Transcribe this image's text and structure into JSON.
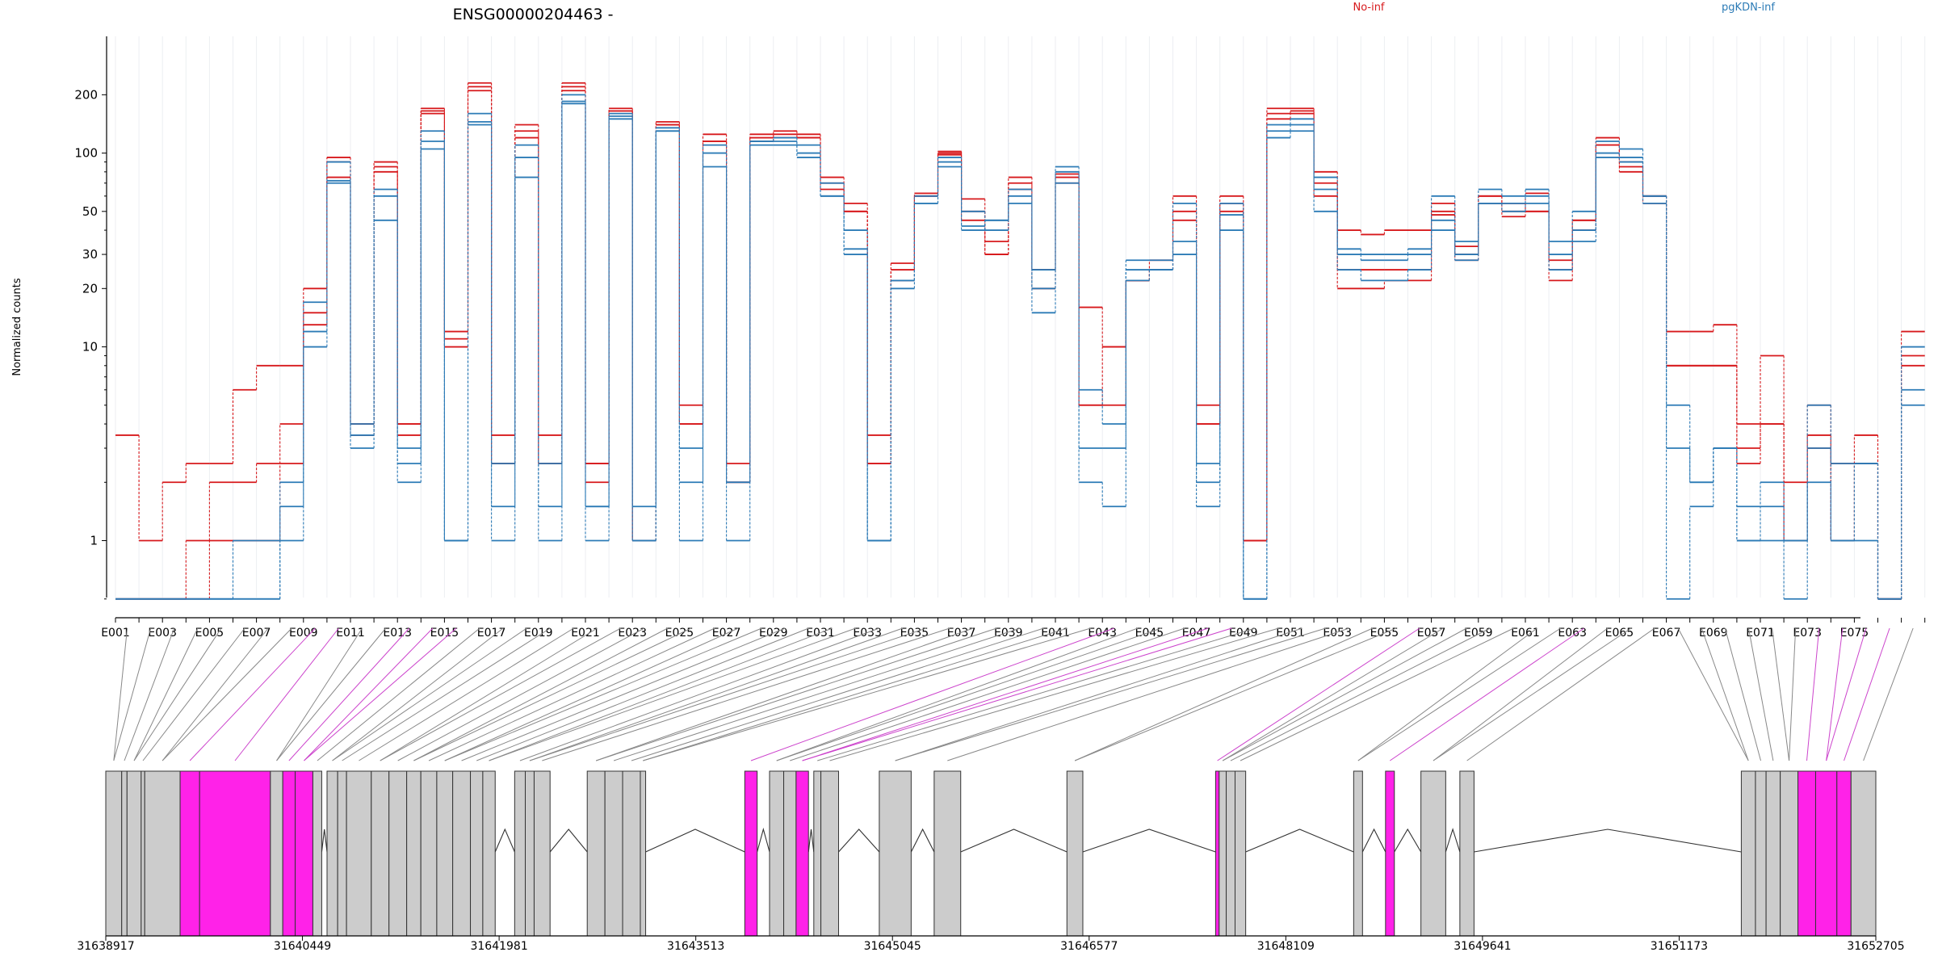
{
  "chart_data": {
    "type": "line",
    "title": "ENSG00000204463 -",
    "ylabel": "Normalized counts",
    "y_scale": "log",
    "ylim": [
      0.4,
      260
    ],
    "yticks": [
      1,
      10,
      20,
      30,
      50,
      100,
      200
    ],
    "ytick_labels": [
      "1",
      "10",
      "20",
      "30",
      "50",
      "100",
      "200"
    ],
    "x_tick_labels": [
      "E001",
      "E003",
      "E005",
      "E007",
      "E009",
      "E011",
      "E013",
      "E015",
      "E017",
      "E019",
      "E021",
      "E023",
      "E025",
      "E027",
      "E029",
      "E031",
      "E033",
      "E035",
      "E037",
      "E039",
      "E041",
      "E043",
      "E045",
      "E047",
      "E049",
      "E051",
      "E053",
      "E055",
      "E057",
      "E059",
      "E061",
      "E063",
      "E065",
      "E067",
      "E069",
      "E071",
      "E073",
      "E075"
    ],
    "legend": [
      "No-inf",
      "pgKDN-inf"
    ],
    "legend_placement": "top-right",
    "colors": {
      "No-inf": "#d7191c",
      "pgKDN-inf": "#2c7bb6",
      "exon": "#cccccc",
      "highlight": "#ff22e8"
    },
    "genome_axis": {
      "ticks": [
        31638917,
        31640449,
        31641981,
        31643513,
        31645045,
        31646577,
        31648109,
        31649641,
        31651173,
        31652705
      ],
      "tick_labels": [
        "31638917",
        "31640449",
        "31641981",
        "31643513",
        "31645045",
        "31646577",
        "31648109",
        "31649641",
        "31651173",
        "31652705"
      ]
    },
    "exons": [
      [
        0,
        0.009
      ],
      [
        0.009,
        0.012
      ],
      [
        0.012,
        0.02
      ],
      [
        0.02,
        0.022
      ],
      [
        0.022,
        0.042
      ],
      [
        0.042,
        0.053
      ],
      [
        0.053,
        0.093
      ],
      [
        0.093,
        0.1
      ],
      [
        0.1,
        0.107
      ],
      [
        0.107,
        0.117
      ],
      [
        0.117,
        0.122
      ],
      [
        0.125,
        0.131
      ],
      [
        0.131,
        0.136
      ],
      [
        0.136,
        0.15
      ],
      [
        0.15,
        0.16
      ],
      [
        0.16,
        0.17
      ],
      [
        0.17,
        0.178
      ],
      [
        0.178,
        0.187
      ],
      [
        0.187,
        0.196
      ],
      [
        0.196,
        0.206
      ],
      [
        0.206,
        0.213
      ],
      [
        0.213,
        0.22
      ],
      [
        0.231,
        0.237
      ],
      [
        0.237,
        0.242
      ],
      [
        0.242,
        0.251
      ],
      [
        0.272,
        0.282
      ],
      [
        0.282,
        0.292
      ],
      [
        0.292,
        0.302
      ],
      [
        0.302,
        0.305
      ],
      [
        0.361,
        0.368
      ],
      [
        0.375,
        0.383
      ],
      [
        0.383,
        0.39
      ],
      [
        0.39,
        0.397
      ],
      [
        0.4,
        0.404
      ],
      [
        0.404,
        0.414
      ],
      [
        0.437,
        0.455
      ],
      [
        0.468,
        0.483
      ],
      [
        0.543,
        0.552
      ],
      [
        0.627,
        0.629
      ],
      [
        0.629,
        0.633
      ],
      [
        0.633,
        0.638
      ],
      [
        0.638,
        0.644
      ],
      [
        0.705,
        0.71
      ],
      [
        0.723,
        0.728
      ],
      [
        0.743,
        0.757
      ],
      [
        0.765,
        0.773
      ],
      [
        0.924,
        0.932
      ],
      [
        0.932,
        0.938
      ],
      [
        0.938,
        0.946
      ],
      [
        0.946,
        0.956
      ],
      [
        0.956,
        0.966
      ],
      [
        0.966,
        0.978
      ],
      [
        0.978,
        0.986
      ],
      [
        0.986,
        1.0
      ]
    ],
    "highlighted_exons": [
      5,
      6,
      8,
      9,
      29,
      32,
      38,
      43,
      50,
      51,
      52
    ],
    "series": [
      {
        "name": "No-inf",
        "values": [
          3.5,
          1,
          2,
          2.5,
          2.5,
          6,
          8,
          8,
          15,
          90,
          4,
          90,
          4,
          170,
          12,
          230,
          3.5,
          140,
          3.5,
          230,
          2.5,
          170,
          1,
          145,
          5,
          125,
          2.5,
          120,
          120,
          120,
          75,
          55,
          3.5,
          27,
          60,
          102,
          58,
          35,
          75,
          25,
          70,
          16,
          10,
          22,
          28,
          60,
          5,
          55,
          1,
          170,
          170,
          60,
          40,
          38,
          40,
          40,
          50,
          30,
          60,
          55,
          50,
          25,
          45,
          120,
          80,
          60,
          12,
          12,
          13,
          3,
          9,
          2,
          3.5,
          1,
          3.5,
          0.5,
          12
        ]
      },
      {
        "name": "No-inf",
        "values": [
          0.5,
          0.5,
          0.5,
          1,
          2,
          2,
          2.5,
          2.5,
          13,
          75,
          3.5,
          80,
          3.5,
          160,
          10,
          210,
          2.5,
          120,
          2.5,
          210,
          2,
          165,
          1,
          140,
          4,
          115,
          2,
          125,
          130,
          120,
          70,
          50,
          2.5,
          25,
          62,
          98,
          50,
          30,
          70,
          20,
          78,
          5,
          10,
          22,
          25,
          50,
          4,
          50,
          1,
          160,
          165,
          70,
          25,
          25,
          25,
          25,
          48,
          28,
          55,
          50,
          50,
          22,
          40,
          110,
          85,
          55,
          8,
          8,
          8,
          2.5,
          4,
          1,
          3,
          1,
          2.5,
          0.5,
          9
        ]
      },
      {
        "name": "No-inf",
        "values": [
          0.5,
          0.5,
          0.5,
          0.5,
          1,
          1,
          1,
          4,
          20,
          95,
          4,
          85,
          4,
          165,
          11,
          220,
          2.5,
          130,
          2.5,
          220,
          2.5,
          165,
          1,
          140,
          4,
          115,
          2,
          115,
          125,
          125,
          65,
          50,
          2.5,
          22,
          60,
          100,
          45,
          30,
          65,
          25,
          75,
          5,
          5,
          22,
          25,
          45,
          4,
          60,
          1,
          150,
          160,
          80,
          20,
          20,
          22,
          22,
          55,
          33,
          60,
          47,
          62,
          28,
          45,
          110,
          90,
          60,
          8,
          8,
          8,
          4,
          4,
          1,
          5,
          2.5,
          2.5,
          0.5,
          8
        ]
      },
      {
        "name": "pgKDN-inf",
        "values": [
          0.5,
          0.5,
          0.5,
          0.5,
          0.5,
          0.5,
          0.5,
          1.5,
          12,
          70,
          4,
          45,
          2,
          105,
          1,
          140,
          1,
          75,
          1,
          180,
          1,
          155,
          1.5,
          130,
          1,
          85,
          1,
          110,
          110,
          100,
          60,
          30,
          1,
          20,
          55,
          85,
          40,
          45,
          55,
          15,
          70,
          2,
          1.5,
          22,
          25,
          30,
          1.5,
          40,
          0.5,
          120,
          130,
          50,
          25,
          22,
          22,
          25,
          40,
          28,
          55,
          50,
          55,
          25,
          35,
          95,
          90,
          55,
          0.5,
          1.5,
          3,
          1,
          1,
          0.5,
          2,
          1,
          1,
          0.5,
          5
        ]
      },
      {
        "name": "pgKDN-inf",
        "values": [
          0.5,
          0.5,
          0.5,
          0.5,
          0.5,
          0.5,
          0.5,
          1,
          10,
          72,
          3,
          60,
          2.5,
          115,
          1,
          145,
          1.5,
          95,
          1.5,
          185,
          1.5,
          150,
          1,
          130,
          2,
          100,
          2,
          115,
          115,
          95,
          60,
          32,
          1,
          22,
          55,
          90,
          42,
          45,
          60,
          20,
          85,
          3,
          3,
          25,
          25,
          35,
          2,
          48,
          0.5,
          130,
          140,
          65,
          30,
          28,
          28,
          30,
          45,
          30,
          55,
          55,
          60,
          30,
          40,
          100,
          95,
          60,
          3,
          2,
          3,
          1.5,
          1.5,
          1,
          3,
          1,
          2.5,
          0.5,
          6
        ]
      },
      {
        "name": "pgKDN-inf",
        "values": [
          0.5,
          0.5,
          0.5,
          0.5,
          0.5,
          1,
          1,
          2,
          17,
          90,
          3.5,
          65,
          3,
          130,
          1,
          160,
          2.5,
          110,
          2.5,
          200,
          1.5,
          160,
          1,
          135,
          3,
          110,
          2,
          115,
          120,
          110,
          70,
          40,
          1,
          22,
          60,
          95,
          50,
          40,
          65,
          25,
          80,
          6,
          4,
          28,
          28,
          55,
          2.5,
          55,
          0.5,
          140,
          150,
          75,
          32,
          30,
          30,
          32,
          60,
          35,
          65,
          60,
          65,
          35,
          50,
          115,
          105,
          60,
          5,
          2,
          3,
          1,
          2,
          1,
          5,
          2.5,
          2.5,
          0.5,
          10
        ]
      }
    ]
  }
}
